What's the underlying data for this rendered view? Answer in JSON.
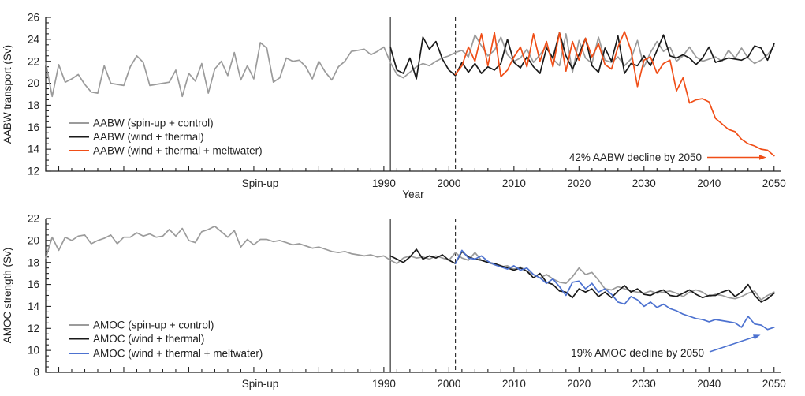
{
  "figure": {
    "background": "#ffffff",
    "text_color": "#222222",
    "axis_color": "#222222"
  },
  "chart_data": [
    {
      "type": "line",
      "panel": "aabw",
      "title": "",
      "ylabel": "AABW transport (Sv)",
      "xlabel": "Year",
      "spin_up_label": "Spin-up",
      "ylim": [
        12,
        26
      ],
      "xlim": [
        1938,
        2051
      ],
      "ytick_labels": [
        12,
        14,
        16,
        18,
        20,
        22,
        24,
        26
      ],
      "ytick_major_step": 2,
      "ytick_minor_step": 0.5,
      "xtick_labels": [
        1990,
        2000,
        2010,
        2020,
        2030,
        2040,
        2050
      ],
      "xtick_minor_step": 2,
      "xtick_major_step": 10,
      "vline_solid_year": 1991,
      "vline_dashed_year": 2001,
      "grid": false,
      "legend_position": "lower-left",
      "series": [
        {
          "name": "AABW (spin-up + control)",
          "color": "#9b9b9b",
          "x_start": 1938,
          "x_step": 1,
          "values": [
            21.9,
            18.8,
            21.7,
            20.1,
            20.4,
            20.8,
            19.9,
            19.2,
            19.1,
            21.6,
            20.0,
            19.9,
            19.8,
            21.5,
            22.5,
            21.9,
            19.8,
            19.9,
            20.0,
            20.1,
            21.2,
            18.8,
            20.9,
            20.2,
            21.8,
            19.1,
            21.3,
            22.0,
            20.7,
            22.8,
            20.3,
            21.6,
            20.4,
            23.7,
            23.2,
            20.1,
            20.5,
            22.3,
            22.0,
            22.1,
            21.5,
            20.4,
            22.0,
            21.0,
            20.3,
            21.5,
            22.0,
            22.9,
            23.0,
            23.1,
            22.6,
            22.9,
            23.3,
            21.9,
            20.8,
            20.5,
            21.0,
            21.5,
            21.8,
            21.6,
            22.0,
            22.3,
            22.5,
            22.8,
            23.0,
            22.4,
            24.4,
            23.4,
            22.5,
            23.0,
            24.2,
            22.6,
            22.0,
            22.3,
            23.1,
            21.9,
            22.6,
            23.4,
            22.2,
            21.6,
            24.5,
            21.0,
            23.9,
            22.3,
            21.8,
            24.2,
            22.1,
            21.9,
            22.4,
            21.6,
            22.2,
            23.9,
            21.5,
            22.8,
            23.8,
            22.9,
            23.3,
            22.0,
            22.5,
            23.3,
            22.4,
            22.0,
            22.2,
            22.4,
            22.0,
            23.0,
            22.3,
            23.2,
            22.3,
            21.8,
            22.1,
            22.6,
            23.4
          ]
        },
        {
          "name": "AABW (wind + thermal)",
          "color": "#1a1a1a",
          "x_start": 1991,
          "x_step": 1,
          "values": [
            23.3,
            21.2,
            20.9,
            22.3,
            20.4,
            24.2,
            23.1,
            23.8,
            22.2,
            21.2,
            20.7,
            21.9,
            21.0,
            21.8,
            20.9,
            21.5,
            21.2,
            21.8,
            24.0,
            21.9,
            21.4,
            22.4,
            21.5,
            20.9,
            23.2,
            22.3,
            24.6,
            22.5,
            21.3,
            22.6,
            24.1,
            21.6,
            21.0,
            23.2,
            22.0,
            24.3,
            20.9,
            21.8,
            21.6,
            22.5,
            21.6,
            23.0,
            24.4,
            22.5,
            22.3,
            22.6,
            22.3,
            21.7,
            22.3,
            23.3,
            21.9,
            22.1,
            22.3,
            22.2,
            22.1,
            22.4,
            23.4,
            23.2,
            22.1,
            23.6
          ]
        },
        {
          "name": "AABW (wind + thermal + meltwater)",
          "color": "#f04e17",
          "x_start": 2001,
          "x_step": 1,
          "values": [
            20.8,
            21.6,
            23.3,
            22.0,
            24.5,
            21.6,
            24.6,
            20.6,
            21.2,
            22.4,
            23.3,
            21.5,
            24.5,
            22.0,
            23.8,
            21.5,
            24.6,
            21.1,
            23.8,
            22.1,
            24.1,
            22.4,
            23.6,
            21.7,
            21.3,
            23.3,
            24.7,
            23.0,
            19.7,
            22.1,
            22.4,
            20.9,
            21.8,
            22.1,
            19.3,
            20.5,
            18.2,
            18.5,
            18.6,
            18.3,
            16.8,
            16.3,
            15.8,
            15.6,
            14.9,
            14.5,
            14.3,
            14.0,
            13.9,
            13.4
          ]
        }
      ],
      "annotation": {
        "text": "42% AABW decline by 2050",
        "text_color": "#222222",
        "arrow_color": "#f04e17"
      }
    },
    {
      "type": "line",
      "panel": "amoc",
      "title": "",
      "ylabel": "AMOC strength (Sv)",
      "xlabel": "",
      "spin_up_label": "Spin-up",
      "ylim": [
        8,
        22
      ],
      "xlim": [
        1938,
        2051
      ],
      "ytick_labels": [
        8,
        10,
        12,
        14,
        16,
        18,
        20,
        22
      ],
      "ytick_major_step": 2,
      "ytick_minor_step": 0.5,
      "xtick_labels": [
        1990,
        2000,
        2010,
        2020,
        2030,
        2040,
        2050
      ],
      "xtick_minor_step": 2,
      "xtick_major_step": 10,
      "vline_solid_year": 1991,
      "vline_dashed_year": 2001,
      "grid": false,
      "legend_position": "lower-left",
      "series": [
        {
          "name": "AMOC (spin-up + control)",
          "color": "#9b9b9b",
          "x_start": 1938,
          "x_step": 1,
          "values": [
            18.4,
            20.3,
            19.1,
            20.3,
            20.0,
            20.4,
            20.5,
            19.7,
            20.0,
            20.2,
            20.5,
            19.7,
            20.3,
            20.3,
            20.7,
            20.4,
            20.6,
            20.3,
            20.4,
            21.0,
            20.4,
            21.1,
            20.0,
            19.8,
            20.8,
            21.0,
            21.3,
            20.8,
            20.3,
            20.9,
            19.4,
            20.1,
            19.6,
            20.1,
            20.1,
            19.9,
            20.0,
            19.8,
            19.6,
            19.7,
            19.5,
            19.3,
            19.4,
            19.2,
            19.0,
            18.9,
            19.0,
            18.8,
            18.7,
            18.6,
            18.7,
            18.5,
            18.6,
            18.2,
            17.9,
            18.4,
            18.6,
            18.4,
            18.5,
            18.3,
            18.6,
            18.4,
            18.2,
            18.9,
            18.4,
            18.2,
            18.9,
            18.2,
            18.0,
            17.8,
            17.6,
            17.7,
            17.4,
            17.6,
            17.2,
            16.9,
            16.6,
            16.9,
            16.5,
            16.2,
            16.1,
            16.7,
            17.5,
            16.9,
            17.1,
            16.4,
            15.6,
            15.5,
            15.8,
            15.6,
            15.4,
            15.3,
            15.2,
            15.4,
            15.2,
            15.3,
            15.4,
            15.2,
            14.9,
            15.3,
            15.5,
            15.3,
            14.9,
            15.1,
            15.0,
            14.8,
            14.7,
            14.9,
            15.2,
            15.4,
            14.6,
            15.0,
            15.3
          ]
        },
        {
          "name": "AMOC (wind + thermal)",
          "color": "#1a1a1a",
          "x_start": 1991,
          "x_step": 1,
          "values": [
            18.6,
            18.3,
            18.0,
            18.5,
            19.2,
            18.3,
            18.6,
            18.4,
            18.7,
            18.2,
            17.9,
            19.0,
            18.5,
            18.3,
            18.2,
            18.0,
            17.9,
            17.7,
            17.5,
            17.3,
            17.5,
            17.2,
            16.6,
            17.0,
            16.2,
            16.0,
            15.4,
            15.3,
            14.8,
            15.6,
            15.3,
            15.6,
            14.9,
            15.3,
            14.8,
            15.4,
            15.9,
            15.3,
            15.6,
            15.1,
            15.0,
            15.3,
            15.5,
            15.0,
            14.9,
            15.2,
            15.5,
            15.1,
            14.8,
            15.0,
            15.0,
            15.3,
            15.5,
            14.9,
            15.3,
            16.0,
            15.0,
            14.4,
            14.7,
            15.2
          ]
        },
        {
          "name": "AMOC (wind + thermal + meltwater)",
          "color": "#4d72d0",
          "x_start": 2001,
          "x_step": 1,
          "values": [
            17.9,
            19.1,
            18.4,
            18.3,
            18.6,
            18.1,
            17.8,
            17.6,
            17.4,
            17.7,
            17.3,
            17.5,
            16.9,
            16.6,
            16.1,
            16.5,
            15.8,
            15.0,
            16.2,
            16.3,
            15.6,
            16.1,
            15.3,
            15.6,
            15.1,
            14.4,
            14.2,
            14.9,
            14.6,
            14.0,
            14.4,
            13.9,
            14.2,
            13.8,
            13.6,
            13.3,
            13.1,
            12.9,
            12.8,
            12.6,
            12.8,
            12.7,
            12.6,
            12.5,
            12.1,
            13.1,
            12.4,
            12.3,
            11.9,
            12.1
          ]
        }
      ],
      "annotation": {
        "text": "19% AMOC decline by 2050",
        "text_color": "#222222",
        "arrow_color": "#4d72d0"
      }
    }
  ]
}
